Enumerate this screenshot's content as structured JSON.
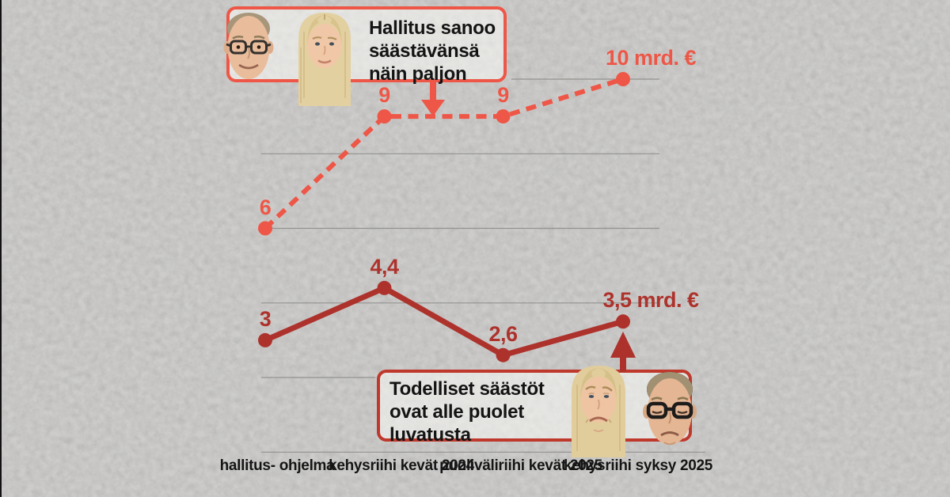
{
  "chart_data": {
    "type": "line",
    "unit": "mrd. €",
    "ylim": [
      0,
      11
    ],
    "grid": true,
    "gridline_levels": [
      0,
      2,
      4,
      6,
      8,
      10
    ],
    "categories": [
      "hallitus-ohjelma",
      "kehysriihi kevät 2024",
      "puoliväliriihi kevät 2025",
      "kehysriihi syksy 2025"
    ],
    "category_lines": [
      [
        "hallitus-",
        "ohjelma"
      ],
      [
        "kehysriihi",
        "kevät 2024"
      ],
      [
        "puoliväliriihi",
        "kevät 2025"
      ],
      [
        "kehysriihi",
        "syksy 2025"
      ]
    ],
    "series": [
      {
        "name": "Hallitus sanoo säästävänsä näin paljon",
        "style": "dashed",
        "color": "#ee5747",
        "values": [
          6,
          9,
          9,
          10
        ],
        "point_labels": [
          "6",
          "9",
          "9",
          "10 mrd. €"
        ]
      },
      {
        "name": "Todelliset säästöt ovat alle puolet luvatusta",
        "style": "solid",
        "color": "#ae322c",
        "values": [
          3,
          4.4,
          2.6,
          3.5
        ],
        "point_labels": [
          "3",
          "4,4",
          "2,6",
          "3,5 mrd. €"
        ]
      }
    ],
    "legend_position": "callout-annotations"
  },
  "callouts": {
    "promised": {
      "lines": [
        "Hallitus sanoo",
        "säästävänsä",
        "näin paljon"
      ],
      "border_color": "#ee5747"
    },
    "actual": {
      "lines": [
        "Todelliset säästöt",
        "ovat alle puolet",
        "luvatusta"
      ],
      "border_color": "#bf382c"
    }
  },
  "colors": {
    "background": "#d2d1cf",
    "gridline": "#92928f",
    "text": "#141414",
    "promised": "#ee5747",
    "actual": "#ae322c"
  }
}
